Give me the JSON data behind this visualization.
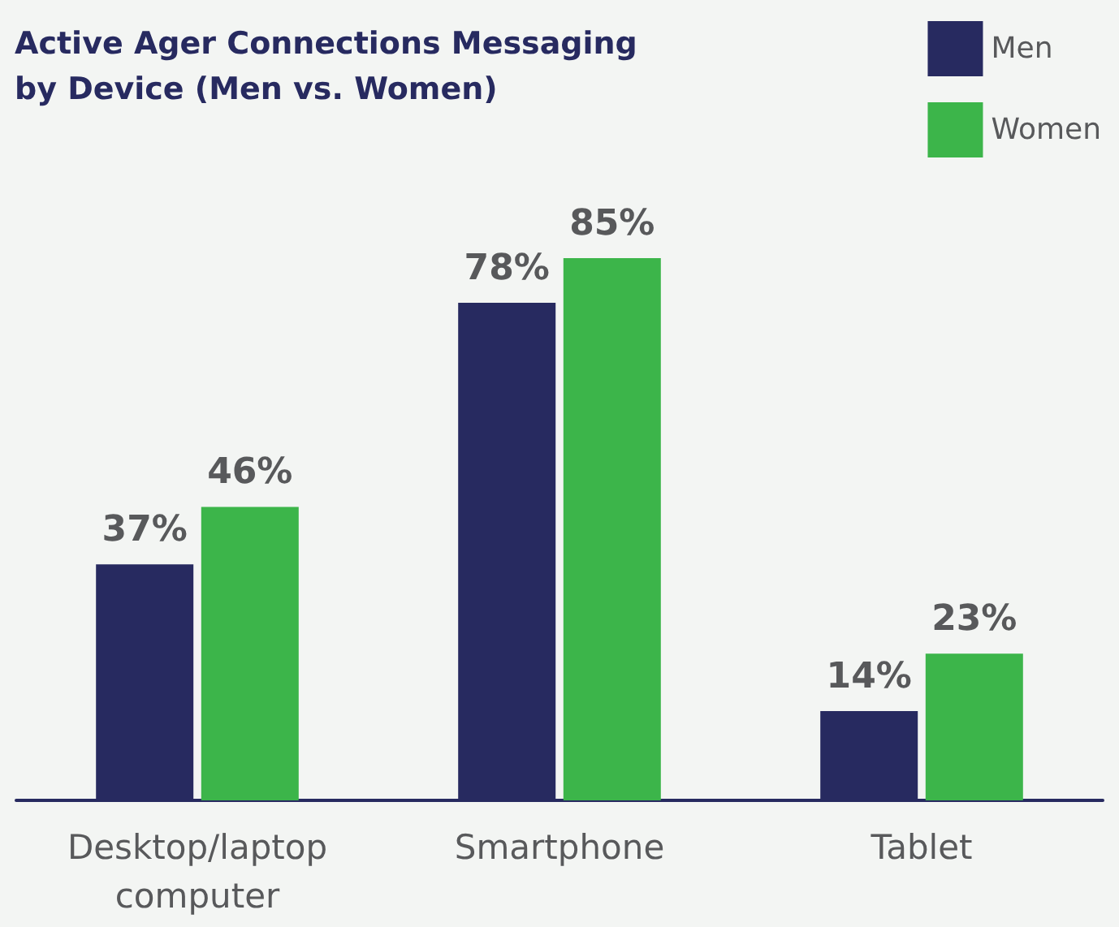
{
  "chart_data": {
    "type": "bar",
    "title": "Active Ager Connections Messaging\nby Device (Men vs. Women)",
    "categories": [
      "Desktop/laptop\ncomputer",
      "Smartphone",
      "Tablet"
    ],
    "series": [
      {
        "name": "Men",
        "color": "#272a60",
        "values": [
          37,
          78,
          14
        ],
        "value_labels": [
          "37%",
          "78%",
          "14%"
        ]
      },
      {
        "name": "Women",
        "color": "#3cb54a",
        "values": [
          46,
          85,
          23
        ],
        "value_labels": [
          "46%",
          "85%",
          "23%"
        ]
      }
    ],
    "legend": "top right"
  }
}
